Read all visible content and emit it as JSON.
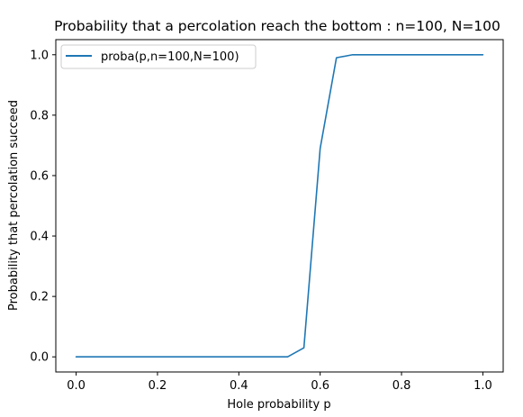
{
  "chart_data": {
    "type": "line",
    "title": "Probability that a percolation reach the bottom : n=100, N=100",
    "xlabel": "Hole probability p",
    "ylabel": "Probability that percolation succeed",
    "xlim": [
      -0.05,
      1.05
    ],
    "ylim": [
      -0.05,
      1.05
    ],
    "xticks": [
      0.0,
      0.2,
      0.4,
      0.6,
      0.8,
      1.0
    ],
    "xtick_labels": [
      "0.0",
      "0.2",
      "0.4",
      "0.6",
      "0.8",
      "1.0"
    ],
    "yticks": [
      0.0,
      0.2,
      0.4,
      0.6,
      0.8,
      1.0
    ],
    "ytick_labels": [
      "0.0",
      "0.2",
      "0.4",
      "0.6",
      "0.8",
      "1.0"
    ],
    "grid": false,
    "legend_position": "upper-left",
    "series": [
      {
        "name": "proba(p,n=100,N=100)",
        "color": "#1f77b4",
        "x": [
          0.0,
          0.04,
          0.08,
          0.12,
          0.16,
          0.2,
          0.24,
          0.28,
          0.32,
          0.36,
          0.4,
          0.44,
          0.48,
          0.52,
          0.56,
          0.6,
          0.64,
          0.68,
          0.72,
          0.76,
          0.8,
          0.84,
          0.88,
          0.92,
          0.96,
          1.0
        ],
        "y": [
          0,
          0,
          0,
          0,
          0,
          0,
          0,
          0,
          0,
          0,
          0,
          0,
          0,
          0,
          0.03,
          0.69,
          0.99,
          1.0,
          1.0,
          1.0,
          1.0,
          1.0,
          1.0,
          1.0,
          1.0,
          1.0
        ]
      }
    ]
  }
}
